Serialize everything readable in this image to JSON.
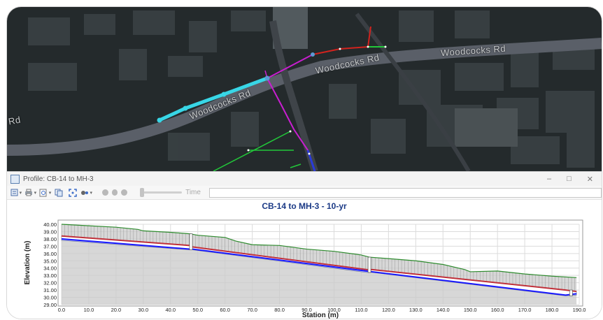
{
  "map": {
    "road_labels": [
      "Woodcocks Rd",
      "Woodcocks Rd",
      "Woodcocks Rd",
      "Rd"
    ],
    "colors": {
      "selected_pipe": "#38d6e6",
      "magenta_pipe": "#c81ed0",
      "red_pipe": "#d2231e",
      "green_pipe": "#22c83a",
      "blue_pipe": "#2a3ad8"
    }
  },
  "window": {
    "title": "Profile: CB-14 to MH-3",
    "minimize_icon": "minimize-icon",
    "maximize_icon": "maximize-icon",
    "close_icon": "close-icon"
  },
  "toolbar": {
    "time_label": "Time",
    "icons": [
      "print-icon",
      "zoom-icon",
      "copy-icon",
      "fit-extent-icon",
      "settings-icon",
      "play-icon",
      "pause-icon",
      "stop-icon"
    ]
  },
  "chart_data": {
    "type": "line",
    "title": "CB-14 to MH-3 - 10-yr",
    "xlabel": "Station (m)",
    "ylabel": "Elevation (m)",
    "xlim": [
      0,
      190
    ],
    "ylim": [
      29,
      40
    ],
    "xticks": [
      "0.0",
      "10.0",
      "20.0",
      "30.0",
      "40.0",
      "50.0",
      "60.0",
      "70.0",
      "80.0",
      "90.0",
      "100.0",
      "110.0",
      "120.0",
      "130.0",
      "140.0",
      "150.0",
      "160.0",
      "170.0",
      "180.0",
      "190.0"
    ],
    "yticks": [
      "29.00",
      "30.00",
      "31.00",
      "32.00",
      "33.00",
      "34.00",
      "35.00",
      "36.00",
      "37.00",
      "38.00",
      "39.00",
      "40.00"
    ],
    "grid": true,
    "series": [
      {
        "role": "ground",
        "color": "#2e8b2e",
        "x": [
          0,
          10,
          20,
          28,
          30,
          40,
          47,
          50,
          60,
          64,
          70,
          80,
          90,
          100,
          110,
          113,
          120,
          130,
          140,
          148,
          150,
          160,
          170,
          180,
          189
        ],
        "y": [
          40.0,
          39.8,
          39.6,
          39.3,
          39.1,
          38.9,
          38.7,
          38.5,
          38.2,
          37.7,
          37.2,
          37.1,
          36.6,
          36.3,
          35.8,
          35.5,
          35.3,
          35.0,
          34.5,
          33.8,
          33.5,
          33.6,
          33.2,
          32.9,
          32.7
        ]
      },
      {
        "role": "pipe-crown",
        "color": "#c0303a",
        "x": [
          0,
          47,
          48,
          112,
          114,
          185,
          189
        ],
        "y": [
          38.4,
          37.1,
          36.9,
          33.8,
          33.8,
          31.0,
          30.8
        ]
      },
      {
        "role": "hydraulic-grade",
        "color": "#1a1aff",
        "x": [
          0,
          47,
          48,
          112,
          114,
          185,
          189
        ],
        "y": [
          38.0,
          36.6,
          36.6,
          33.6,
          33.5,
          30.3,
          30.5
        ]
      },
      {
        "role": "pipe-invert",
        "color": "#b0b0b0",
        "x": [
          0,
          47,
          48,
          112,
          114,
          185,
          189
        ],
        "y": [
          37.8,
          36.5,
          36.5,
          33.4,
          33.4,
          30.2,
          30.3
        ]
      }
    ],
    "structures": [
      {
        "x": 47.5,
        "rim": 38.7,
        "invert": 36.5
      },
      {
        "x": 113,
        "rim": 35.5,
        "invert": 33.4
      },
      {
        "x": 187,
        "rim": 31.0,
        "invert": 30.2
      }
    ]
  }
}
